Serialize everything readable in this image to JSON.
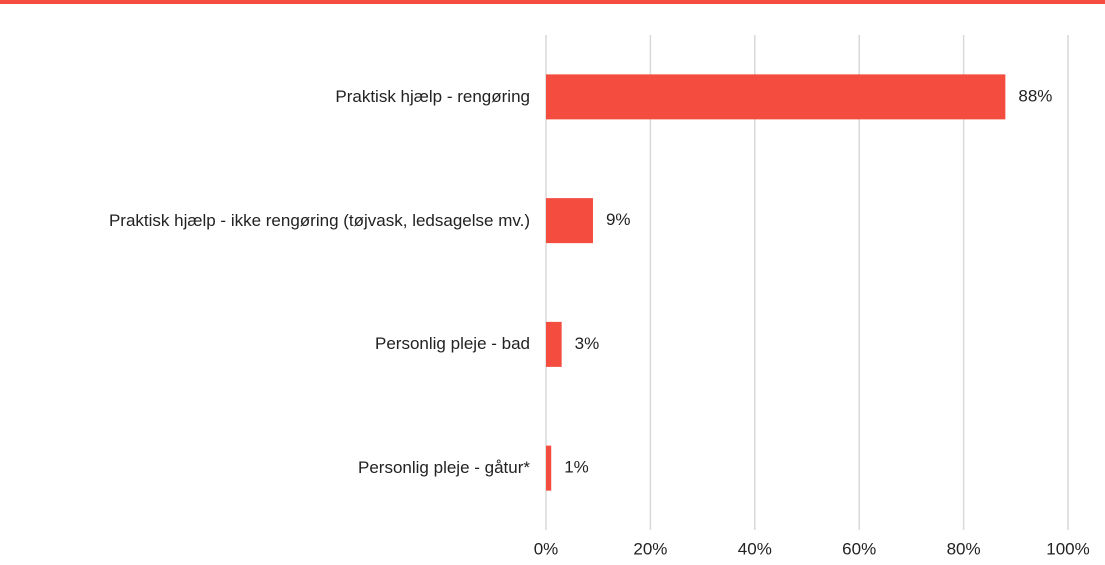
{
  "chart_data": {
    "type": "bar",
    "orientation": "horizontal",
    "categories": [
      "Praktisk hjælp - rengøring",
      "Praktisk hjælp - ikke rengøring (tøjvask, ledsagelse mv.)",
      "Personlig pleje - bad",
      "Personlig pleje - gåtur*"
    ],
    "values": [
      88,
      9,
      3,
      1
    ],
    "value_labels": [
      "88%",
      "9%",
      "3%",
      "1%"
    ],
    "color": "#f44c3e",
    "xlim": [
      0,
      100
    ],
    "xticks": [
      {
        "value": 0,
        "label": "0%"
      },
      {
        "value": 20,
        "label": "20%"
      },
      {
        "value": 40,
        "label": "40%"
      },
      {
        "value": 60,
        "label": "60%"
      },
      {
        "value": 80,
        "label": "80%"
      },
      {
        "value": 100,
        "label": "100%"
      }
    ],
    "grid": true
  }
}
